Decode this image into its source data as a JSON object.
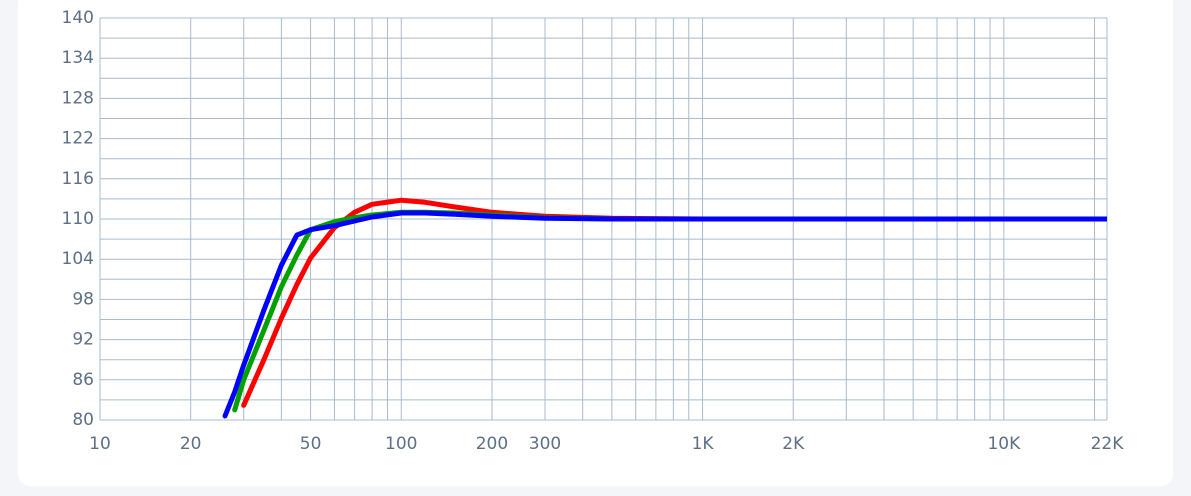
{
  "chart_data": {
    "type": "line",
    "xscale": "log",
    "grid": true,
    "x": [
      26,
      28,
      30,
      35,
      40,
      45,
      50,
      60,
      70,
      80,
      100,
      120,
      150,
      200,
      300,
      500,
      1000,
      2000,
      5000,
      10000,
      20000,
      22000
    ],
    "series": [
      {
        "color": "#ff0000",
        "values": [
          null,
          null,
          82.2,
          89,
          95.2,
          100.2,
          104.2,
          108.7,
          111,
          112.2,
          112.8,
          112.5,
          111.8,
          111,
          110.4,
          110.1,
          110,
          110,
          110,
          110,
          110,
          110
        ]
      },
      {
        "color": "#00a000",
        "values": [
          null,
          81.5,
          86,
          93.4,
          99.9,
          104.6,
          108.4,
          109.6,
          110.2,
          110.6,
          111,
          111,
          110.9,
          110.6,
          110.2,
          110,
          110,
          110,
          110,
          110,
          110,
          110
        ]
      },
      {
        "color": "#0000ff",
        "values": [
          80.6,
          84.2,
          88.2,
          96.4,
          103.1,
          107.6,
          108.4,
          109,
          109.7,
          110.3,
          110.9,
          110.9,
          110.7,
          110.4,
          110.1,
          110,
          110,
          110,
          110,
          110,
          110,
          110
        ]
      }
    ],
    "xlim": [
      10,
      22000
    ],
    "ylim": [
      80,
      140
    ],
    "xticks": [
      10,
      20,
      50,
      100,
      200,
      300,
      {
        "value": 1000,
        "label": "1K"
      },
      {
        "value": 2000,
        "label": "2K"
      },
      {
        "value": 10000,
        "label": "10K"
      },
      {
        "value": 22000,
        "label": "22K"
      }
    ],
    "yticks": [
      80,
      86,
      92,
      98,
      104,
      110,
      116,
      122,
      128,
      134,
      140
    ],
    "xgrid": [
      10,
      20,
      30,
      40,
      50,
      60,
      70,
      80,
      90,
      100,
      200,
      300,
      400,
      500,
      600,
      700,
      800,
      900,
      1000,
      2000,
      3000,
      4000,
      5000,
      6000,
      7000,
      8000,
      9000,
      10000,
      20000,
      22000
    ],
    "ygrid": [
      80,
      83,
      86,
      89,
      92,
      95,
      98,
      101,
      104,
      107,
      110,
      113,
      116,
      119,
      122,
      125,
      128,
      131,
      134,
      137,
      140
    ]
  }
}
